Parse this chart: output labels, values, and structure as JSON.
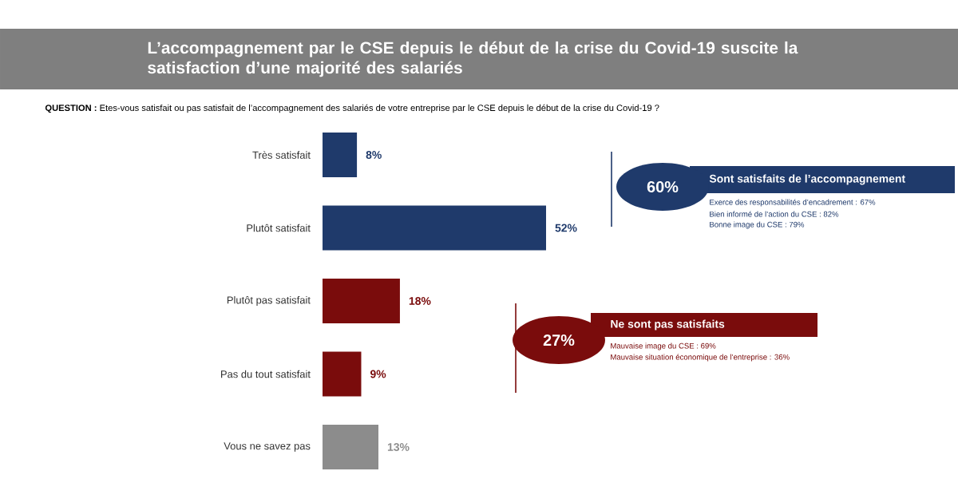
{
  "chart_data": {
    "type": "bar",
    "orientation": "horizontal",
    "title": "L’accompagnement par le CSE depuis le début de la crise du Covid-19 suscite la satisfaction d’une majorité des salariés",
    "subtitle": "**QUESTION :** Etes-vous satisfait ou pas satisfait de l’accompagnement des salariés de votre entreprise par le CSE depuis le début de la crise du Covid-19 ?",
    "categories": [
      "Très satisfait",
      "Plutôt satisfait",
      "Plutôt pas satisfait",
      "Pas du tout satisfait",
      "Vous ne savez pas"
    ],
    "values": [
      8,
      52,
      18,
      9,
      13
    ],
    "colors": [
      "#1f3a6b",
      "#1f3a6b",
      "#7a0c0c",
      "#7a0c0c",
      "#8c8c8c"
    ],
    "value_labels": [
      "8%",
      "52%",
      "18%",
      "9%",
      "13%"
    ],
    "annotations": [
      "60%",
      "Sont satisfaits de l’accompagnement",
      "Exerce des responsabilités d’encadrement : 67%",
      "Bien informé de l’action du CSE : 82%",
      "Bonne image du CSE : 79%",
      "27%",
      "Ne sont pas satisfaits",
      "Mauvaise image du CSE : 69%",
      "Mauvaise situation économique de l’entreprise : 36%"
    ]
  }
}
